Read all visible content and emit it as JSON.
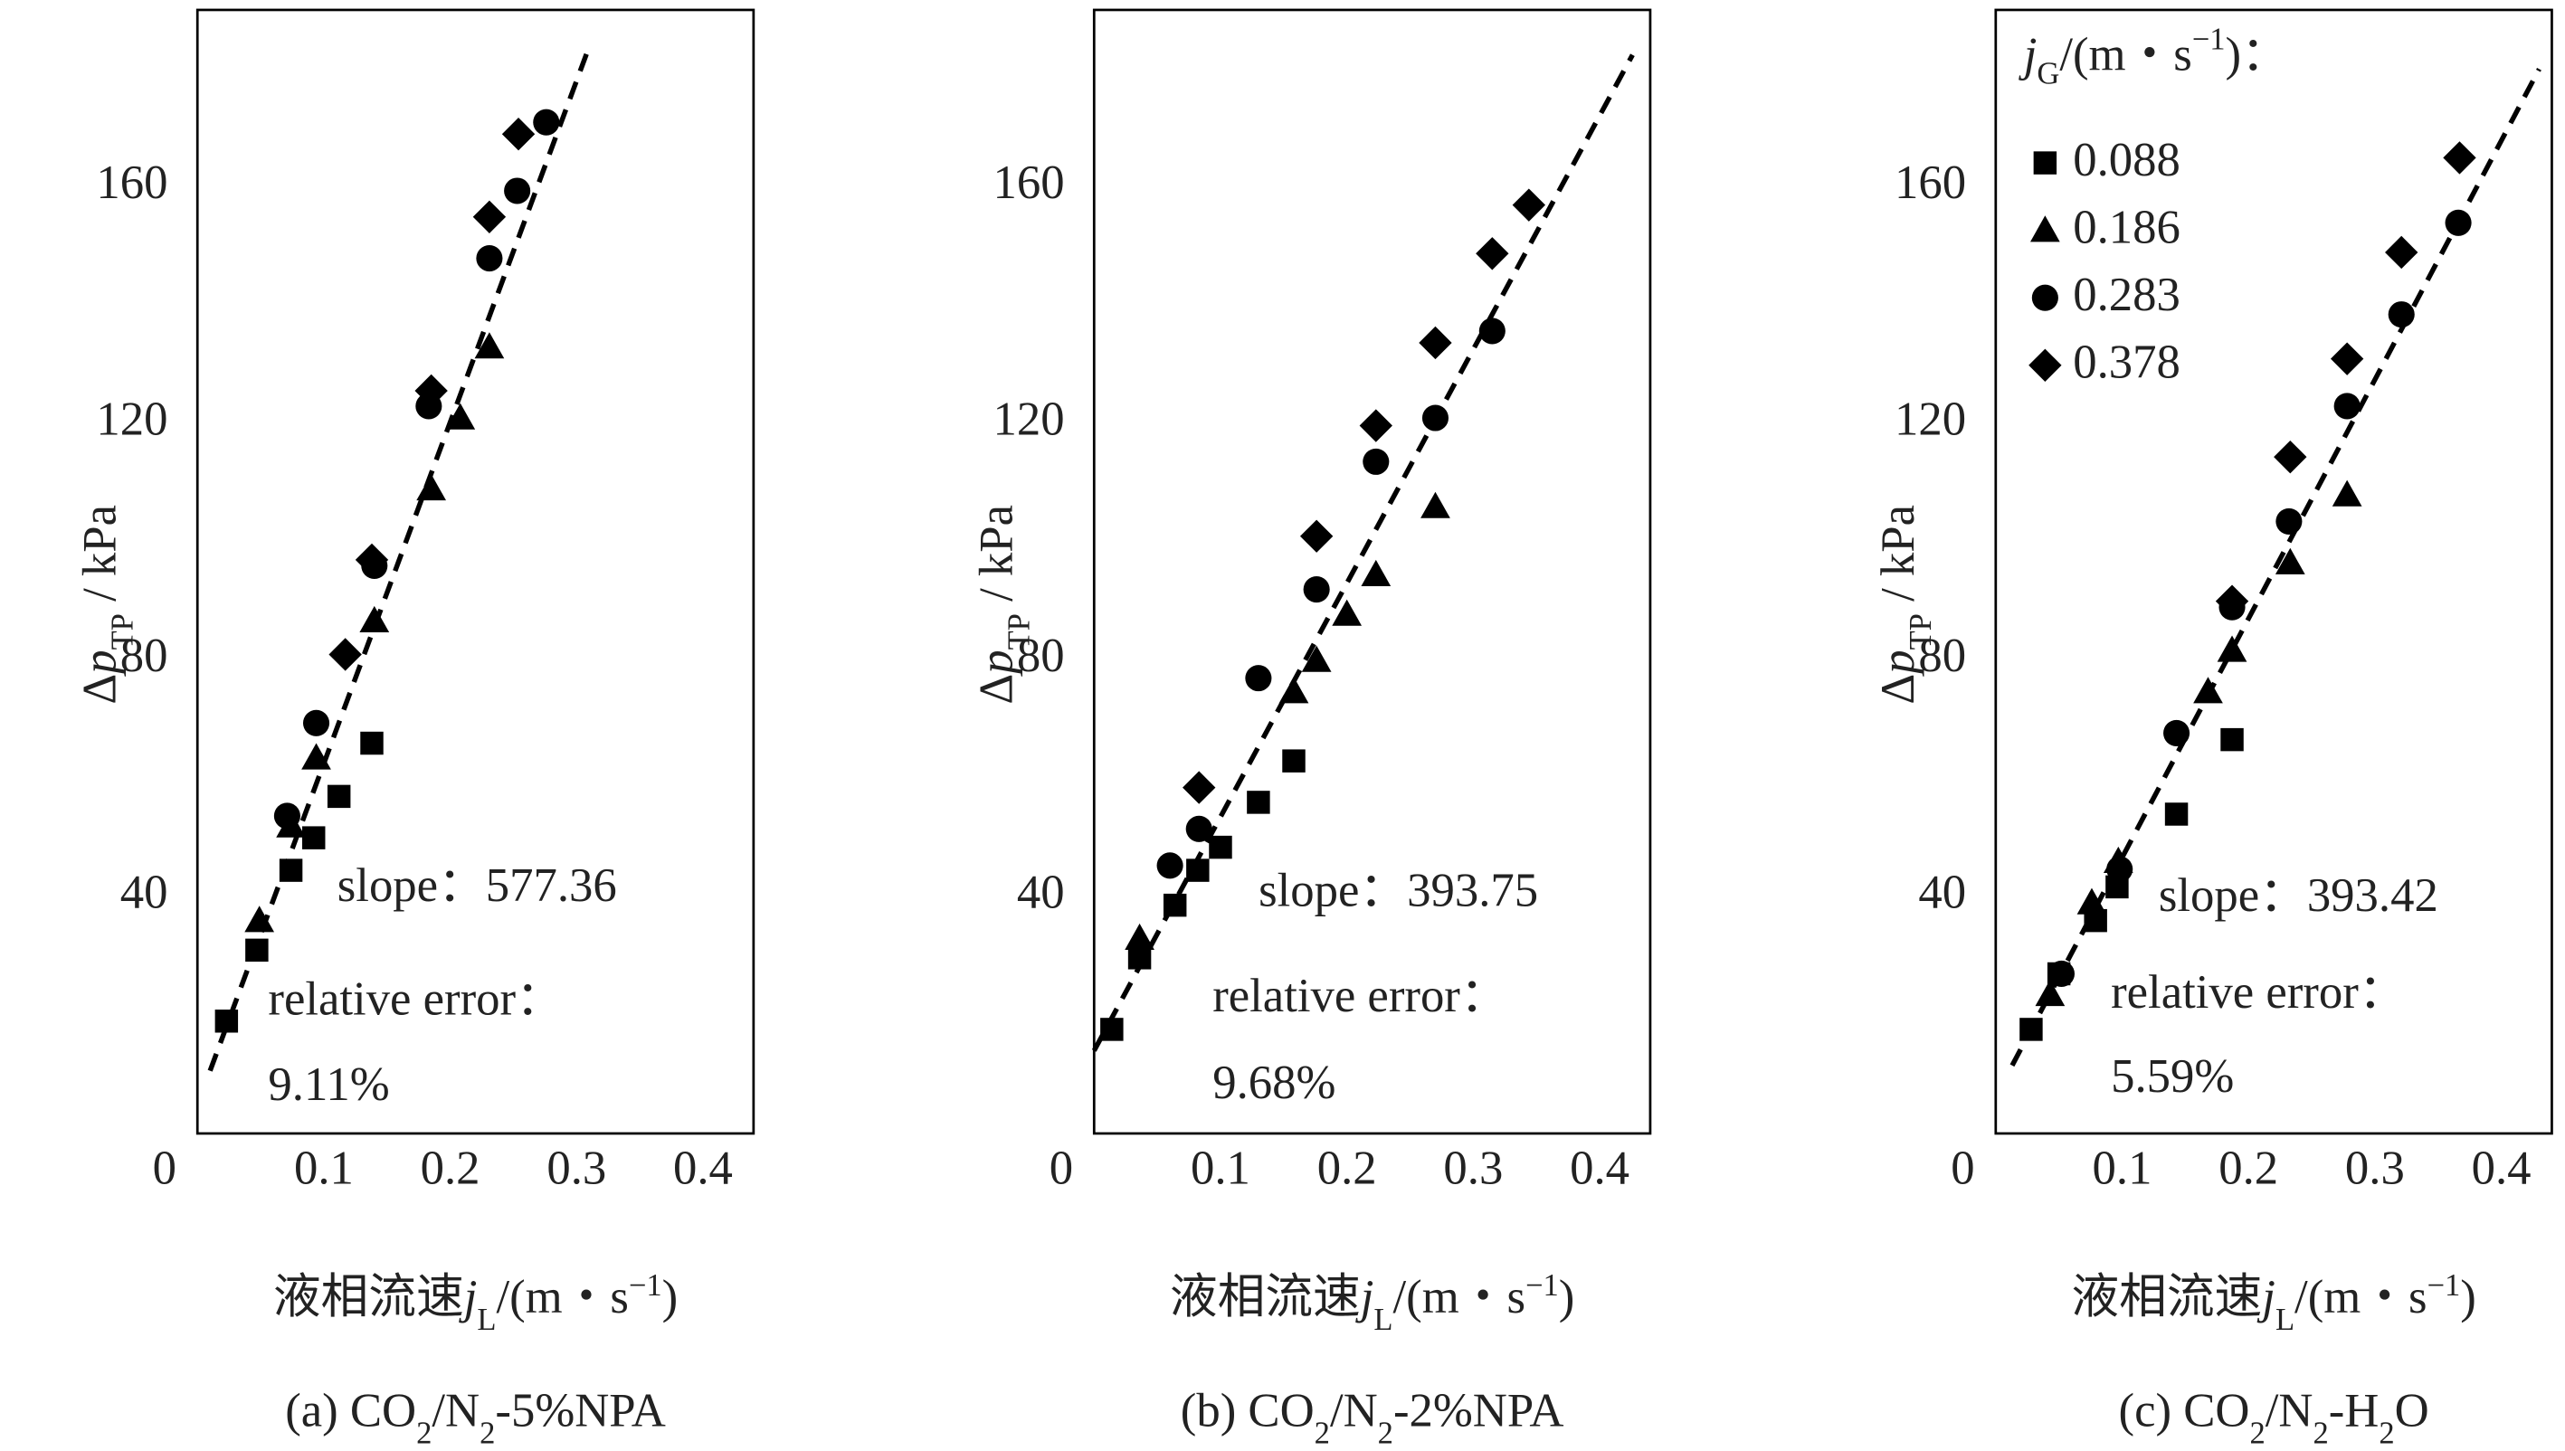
{
  "chart_data": [
    {
      "type": "scatter",
      "subtitle": [
        "(a) CO",
        "2",
        "/N",
        "2",
        "-5%NPA"
      ],
      "xlabel": [
        "液相流速",
        "j",
        "L",
        "/(m・s",
        "−1",
        ")"
      ],
      "ylabel": [
        "Δ",
        "p",
        "TP",
        " / kPa"
      ],
      "xlim": [
        0,
        0.44
      ],
      "ylim": [
        0,
        190
      ],
      "xticks": [
        0,
        0.1,
        0.2,
        0.3,
        0.4
      ],
      "yticks": [
        40,
        80,
        120,
        160
      ],
      "annotations": [
        "slope：577.36",
        "relative error：",
        "9.11%"
      ],
      "fit": {
        "x": [
          0.01,
          0.31
        ],
        "y": [
          10.6,
          183.8
        ]
      },
      "series": [
        {
          "marker": "square",
          "color": "#000000",
          "x": [
            0.023,
            0.047,
            0.074,
            0.092,
            0.112,
            0.138
          ],
          "values": [
            19,
            31,
            44.5,
            50,
            57,
            66
          ]
        },
        {
          "marker": "triangle",
          "color": "#000000",
          "x": [
            0.049,
            0.074,
            0.094,
            0.14,
            0.185,
            0.208,
            0.231
          ],
          "values": [
            36,
            52,
            63.5,
            86.7,
            109,
            121,
            133
          ]
        },
        {
          "marker": "circle",
          "color": "#000000",
          "x": [
            0.071,
            0.094,
            0.14,
            0.183,
            0.231,
            0.253,
            0.276
          ],
          "values": [
            53.7,
            69.4,
            96,
            123,
            148,
            159.4,
            171
          ]
        },
        {
          "marker": "diamond",
          "color": "#000000",
          "x": [
            0.117,
            0.138,
            0.185,
            0.231,
            0.254
          ],
          "values": [
            81,
            97,
            125.6,
            155,
            169
          ]
        }
      ]
    },
    {
      "type": "scatter",
      "subtitle": [
        "(b) CO",
        "2",
        "/N",
        "2",
        "-2%NPA"
      ],
      "xlabel": [
        "液相流速",
        "j",
        "L",
        "/(m・s",
        "−1",
        ")"
      ],
      "ylabel": [
        "Δ",
        "p",
        "TP",
        " / kPa"
      ],
      "xlim": [
        0,
        0.44
      ],
      "ylim": [
        0,
        190
      ],
      "xticks": [
        0,
        0.1,
        0.2,
        0.3,
        0.4
      ],
      "yticks": [
        40,
        80,
        120,
        160
      ],
      "annotations": [
        "slope：393.75",
        "relative error：",
        "9.68%"
      ],
      "fit": {
        "x": [
          0,
          0.426
        ],
        "y": [
          14,
          182.4
        ]
      },
      "series": [
        {
          "marker": "square",
          "color": "#000000",
          "x": [
            0.014,
            0.036,
            0.064,
            0.082,
            0.1,
            0.13,
            0.158
          ],
          "values": [
            17.6,
            29.7,
            38.6,
            44.5,
            48.4,
            56,
            63
          ]
        },
        {
          "marker": "triangle",
          "color": "#000000",
          "x": [
            0.036,
            0.158,
            0.176,
            0.2,
            0.223,
            0.27
          ],
          "values": [
            33,
            74.7,
            80,
            87.8,
            94.5,
            106
          ]
        },
        {
          "marker": "circle",
          "color": "#000000",
          "x": [
            0.06,
            0.083,
            0.13,
            0.176,
            0.223,
            0.27,
            0.315
          ],
          "values": [
            45.3,
            51.5,
            77,
            92,
            113.6,
            121,
            135.7
          ]
        },
        {
          "marker": "diamond",
          "color": "#000000",
          "x": [
            0.083,
            0.176,
            0.223,
            0.27,
            0.315,
            0.344
          ],
          "values": [
            58.5,
            101,
            119.7,
            133.7,
            148.8,
            157
          ]
        }
      ]
    },
    {
      "type": "scatter",
      "subtitle": [
        "(c) CO",
        "2",
        "/N",
        "2",
        "-H",
        "2",
        "O"
      ],
      "xlabel": [
        "液相流速",
        "j",
        "L",
        "/(m・s",
        "−1",
        ")"
      ],
      "ylabel": [
        "Δ",
        "p",
        "TP",
        " / kPa"
      ],
      "xlim": [
        0,
        0.44
      ],
      "ylim": [
        0,
        190
      ],
      "xticks": [
        0,
        0.1,
        0.2,
        0.3,
        0.4
      ],
      "yticks": [
        40,
        80,
        120,
        160
      ],
      "annotations": [
        "slope：393.42",
        "relative error：",
        "5.59%"
      ],
      "legend_title": [
        "j",
        "G",
        "/(m・s",
        "−1",
        ")："
      ],
      "legend": "upper left",
      "fit": {
        "x": [
          0.013,
          0.43
        ],
        "y": [
          11.5,
          180
        ]
      },
      "series": [
        {
          "name": "0.088",
          "marker": "square",
          "color": "#000000",
          "x": [
            0.028,
            0.05,
            0.079,
            0.096,
            0.143,
            0.187
          ],
          "values": [
            17.6,
            27,
            36,
            41.7,
            54,
            66.6
          ]
        },
        {
          "name": "0.186",
          "marker": "triangle",
          "color": "#000000",
          "x": [
            0.043,
            0.076,
            0.097,
            0.168,
            0.187,
            0.233,
            0.278
          ],
          "values": [
            23.5,
            39,
            46,
            74.7,
            81.7,
            96.5,
            108
          ]
        },
        {
          "name": "0.283",
          "marker": "circle",
          "color": "#000000",
          "x": [
            0.052,
            0.098,
            0.143,
            0.187,
            0.232,
            0.278,
            0.321,
            0.366
          ],
          "values": [
            27,
            44.7,
            67.7,
            89,
            103.5,
            123,
            138.5,
            154
          ]
        },
        {
          "name": "0.378",
          "marker": "diamond",
          "color": "#000000",
          "x": [
            0.187,
            0.233,
            0.278,
            0.321,
            0.367
          ],
          "values": [
            90,
            114.4,
            131,
            149,
            165
          ]
        }
      ]
    }
  ]
}
